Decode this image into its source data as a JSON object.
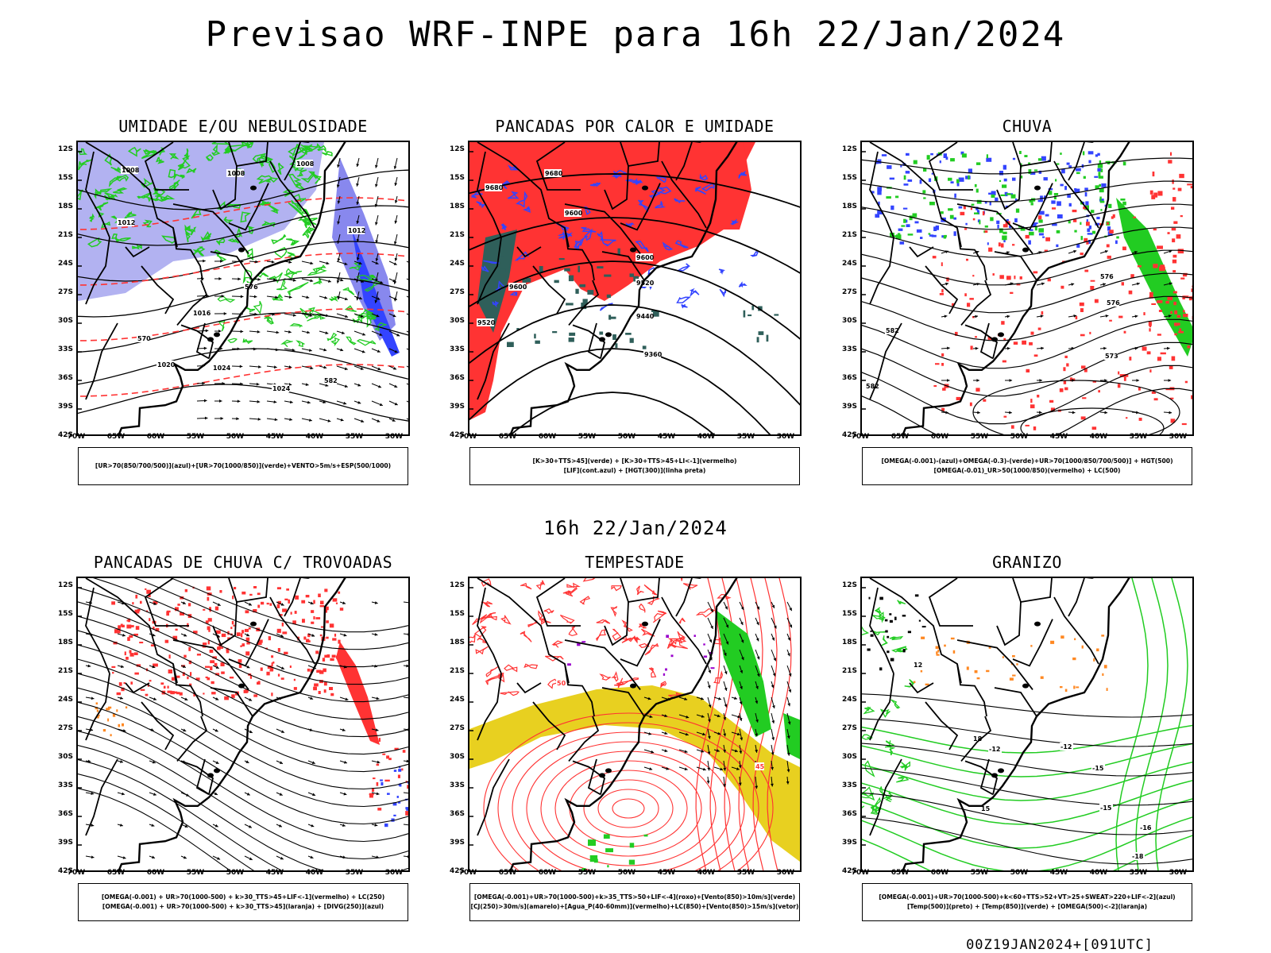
{
  "page": {
    "title": "Previsao WRF-INPE  para 16h 22/Jan/2024",
    "mid_title": "16h 22/Jan/2024",
    "footer": "00Z19JAN2024+[091UTC]"
  },
  "axes": {
    "lat_ticks": [
      "12S",
      "15S",
      "18S",
      "21S",
      "24S",
      "27S",
      "30S",
      "33S",
      "36S",
      "39S",
      "42S"
    ],
    "lon_ticks": [
      "70W",
      "65W",
      "60W",
      "55W",
      "50W",
      "45W",
      "40W",
      "35W",
      "30W"
    ]
  },
  "colors": {
    "green": "#22cc22",
    "red": "#ff3333",
    "blue": "#3344ff",
    "lavender": "#aaaaf0",
    "yellow": "#e8d020",
    "dark_teal": "#2f5f5a",
    "orange": "#ff8822",
    "purple": "#9900cc"
  },
  "panels": [
    {
      "id": "umidade",
      "title": "UMIDADE E/OU NEBULOSIDADE",
      "legend": [
        "[UR>70(850/700/500)](azul)+[UR>70(1000/850)](verde)+VENTO>5m/s+ESP(500/1000)"
      ],
      "contour_labels": [
        "1008",
        "1008",
        "1008",
        "1012",
        "1012",
        "1016",
        "1020",
        "1024",
        "1024",
        "570",
        "576",
        "582"
      ]
    },
    {
      "id": "pancadas-calor",
      "title": "PANCADAS POR CALOR E UMIDADE",
      "legend": [
        "[K>30+TTS>45](verde) + [K>30+TTS>45+LI<-1](vermelho)",
        "[LIF](cont.azul) + [HGT(300)](linha preta)"
      ],
      "contour_labels": [
        "9680",
        "9680",
        "9600",
        "9600",
        "9520",
        "9520",
        "9440",
        "9360",
        "9600"
      ]
    },
    {
      "id": "chuva",
      "title": "CHUVA",
      "legend": [
        "[OMEGA(-0.001)-(azul)+OMEGA(-0.3)-(verde)+UR>70(1000/850/700/500)] + HGT(500)",
        "[OMEGA(-0.01)_UR>50(1000/850)(vermelho) + LC(500)"
      ],
      "contour_labels": [
        "576",
        "576",
        "573",
        "582",
        "582"
      ]
    },
    {
      "id": "trovoadas",
      "title": "PANCADAS DE CHUVA C/ TROVOADAS",
      "legend": [
        "[OMEGA(-0.001) + UR>70(1000-500) + k>30_TTS>45+LIF<-1](vermelho) + LC(250)",
        "[OMEGA(-0.001) + UR>70(1000-500) + k>30_TTS>45](laranja) + [DIVG(250)](azul)"
      ],
      "contour_labels": []
    },
    {
      "id": "tempestade",
      "title": "TEMPESTADE",
      "legend": [
        "[OMEGA(-0.001)+UR>70(1000-500)+k>35_TTS>50+LIF<-4](roxo)+[Vento(850)>10m/s](verde)",
        "[CJ(250)>30m/s](amarelo)+[Agua_P(40-60mm)](vermelho)+LC(850)+[Vento(850)>15m/s](vetor)"
      ],
      "contour_labels": [
        "50",
        "45"
      ]
    },
    {
      "id": "granizo",
      "title": "GRANIZO",
      "legend": [
        "[OMEGA(-0.001)+UR>70(1000-500)+k<60+TTS>52+VT>25+SWEAT>220+LIF<-2](azul)",
        "[Temp(500)](preto) + [Temp(850)](verde) + [OMEGA(500)<-2](laranja)"
      ],
      "contour_labels": [
        "-12",
        "-12",
        "-15",
        "-15",
        "-16",
        "-18",
        "12",
        "18",
        "15"
      ]
    }
  ]
}
